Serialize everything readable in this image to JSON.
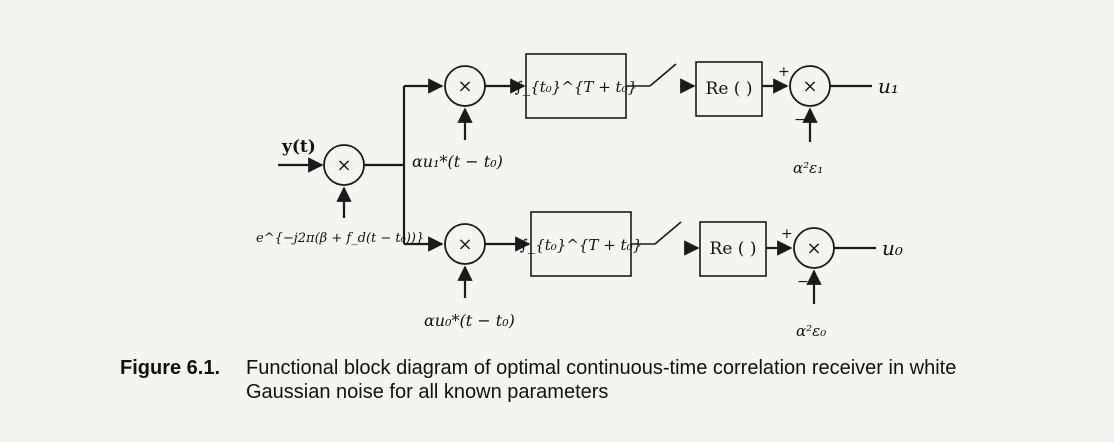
{
  "input_label": "y(t)",
  "mixer_symbol": "×",
  "mixer_input_label": "e^{−j2π(β + f_d(t − t₀))}",
  "branch_top": {
    "ref_label": "αu₁*(t − t₀)",
    "integrator_label": "∫_{t₀}^{T + t₀}",
    "re_label": "Re ( )",
    "plus": "+",
    "minus": "−",
    "energy_label": "α²ε₁",
    "output_label": "u₁"
  },
  "branch_bottom": {
    "ref_label": "αu₀*(t − t₀)",
    "integrator_label": "∫_{t₀}^{T + t₀}",
    "re_label": "Re ( )",
    "plus": "+",
    "minus": "−",
    "energy_label": "α²ε₀",
    "output_label": "u₀"
  },
  "caption": {
    "number": "Figure 6.1.",
    "text": "Functional block diagram of optimal continuous-time correlation receiver in white Gaussian noise for all known parameters"
  }
}
